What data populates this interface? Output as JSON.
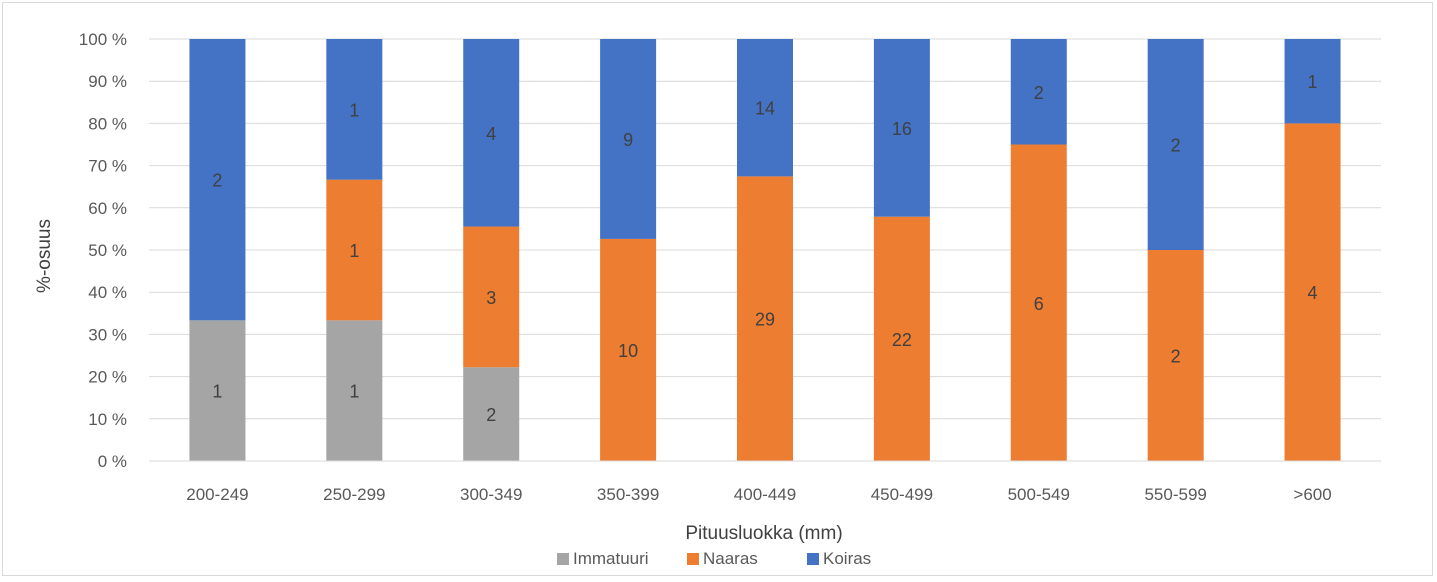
{
  "chart_data": {
    "type": "bar",
    "stacked": "percent",
    "title": "",
    "xlabel": "Pituusluokka (mm)",
    "ylabel": "%-osuus",
    "ylim": [
      0,
      100
    ],
    "yticks": [
      "0 %",
      "10 %",
      "20 %",
      "30 %",
      "40 %",
      "50 %",
      "60 %",
      "70 %",
      "80 %",
      "90 %",
      "100 %"
    ],
    "grid": true,
    "legend_position": "bottom",
    "categories": [
      "200-249",
      "250-299",
      "300-349",
      "350-399",
      "400-449",
      "450-499",
      "500-549",
      "550-599",
      ">600"
    ],
    "series": [
      {
        "name": "Immatuuri",
        "color": "#a5a5a5",
        "values": [
          1,
          1,
          2,
          0,
          0,
          0,
          0,
          0,
          0
        ]
      },
      {
        "name": "Naaras",
        "color": "#ed7d31",
        "values": [
          0,
          1,
          3,
          10,
          29,
          22,
          6,
          2,
          4
        ]
      },
      {
        "name": "Koiras",
        "color": "#4472c4",
        "values": [
          2,
          1,
          4,
          9,
          14,
          16,
          2,
          2,
          1
        ]
      }
    ]
  }
}
